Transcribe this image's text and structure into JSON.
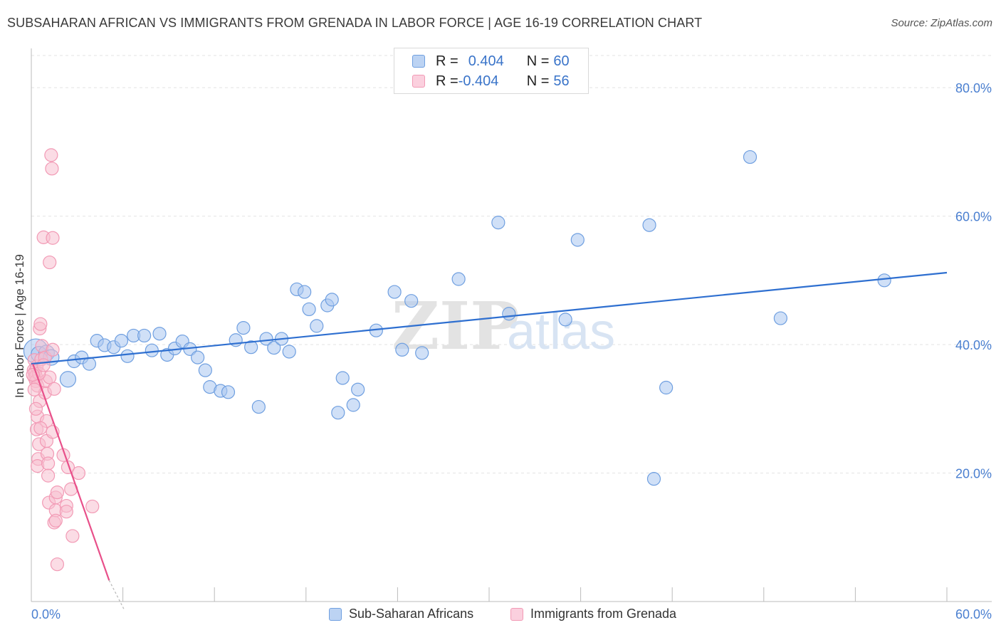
{
  "title": "SUBSAHARAN AFRICAN VS IMMIGRANTS FROM GRENADA IN LABOR FORCE | AGE 16-19 CORRELATION CHART",
  "source": "Source: ZipAtlas.com",
  "legend_stats": [
    {
      "r_label": "R = ",
      "r_value": "0.404",
      "n_label": "N = ",
      "n_value": "60",
      "color": "#6f9fe0"
    },
    {
      "r_label": "R = ",
      "r_value": "-0.404",
      "n_label": "N = ",
      "n_value": "56",
      "color": "#f29ab5"
    }
  ],
  "chart_data": {
    "type": "scatter",
    "ylabel": "In Labor Force | Age 16-19",
    "xlim": [
      0,
      60
    ],
    "ylim": [
      0,
      85
    ],
    "x_tick_labels": [
      "0.0%",
      "60.0%"
    ],
    "y_ticks": [
      20,
      40,
      60,
      80
    ],
    "y_tick_labels": [
      "20.0%",
      "40.0%",
      "60.0%",
      "80.0%"
    ],
    "grid": true,
    "legend_position": "bottom",
    "series": [
      {
        "name": "Sub-Saharan Africans",
        "color": "#6f9fe0",
        "fill": "#a9c6f0",
        "trend": {
          "x": [
            0,
            60
          ],
          "y": [
            37.0,
            51.2
          ],
          "color": "#2e6fd0"
        },
        "points": [
          [
            0.3,
            39.0
          ],
          [
            0.5,
            38.5
          ],
          [
            1.0,
            38.7
          ],
          [
            1.3,
            38.0
          ],
          [
            2.4,
            34.6
          ],
          [
            2.8,
            37.4
          ],
          [
            3.3,
            38.0
          ],
          [
            3.8,
            37.0
          ],
          [
            4.3,
            40.6
          ],
          [
            4.8,
            39.9
          ],
          [
            5.4,
            39.6
          ],
          [
            5.9,
            40.6
          ],
          [
            6.3,
            38.2
          ],
          [
            6.7,
            41.4
          ],
          [
            7.4,
            41.4
          ],
          [
            7.9,
            39.1
          ],
          [
            8.4,
            41.7
          ],
          [
            8.9,
            38.4
          ],
          [
            9.4,
            39.4
          ],
          [
            9.9,
            40.5
          ],
          [
            10.4,
            39.3
          ],
          [
            10.9,
            38.0
          ],
          [
            11.4,
            36.0
          ],
          [
            11.7,
            33.4
          ],
          [
            12.4,
            32.8
          ],
          [
            12.9,
            32.6
          ],
          [
            13.4,
            40.7
          ],
          [
            13.9,
            42.6
          ],
          [
            14.4,
            39.6
          ],
          [
            14.9,
            30.3
          ],
          [
            15.4,
            40.9
          ],
          [
            15.9,
            39.5
          ],
          [
            16.4,
            40.9
          ],
          [
            16.9,
            38.9
          ],
          [
            17.4,
            48.6
          ],
          [
            17.9,
            48.2
          ],
          [
            18.2,
            45.5
          ],
          [
            18.7,
            42.9
          ],
          [
            19.4,
            46.1
          ],
          [
            19.7,
            47.0
          ],
          [
            20.1,
            29.4
          ],
          [
            20.4,
            34.8
          ],
          [
            21.1,
            30.6
          ],
          [
            21.4,
            33.0
          ],
          [
            22.6,
            42.2
          ],
          [
            23.8,
            48.2
          ],
          [
            24.3,
            39.2
          ],
          [
            24.9,
            46.8
          ],
          [
            25.6,
            38.7
          ],
          [
            28.0,
            50.2
          ],
          [
            30.6,
            59.0
          ],
          [
            31.3,
            44.8
          ],
          [
            35.0,
            43.9
          ],
          [
            35.8,
            56.3
          ],
          [
            40.5,
            58.6
          ],
          [
            40.8,
            19.1
          ],
          [
            41.6,
            33.3
          ],
          [
            47.1,
            69.2
          ],
          [
            49.1,
            44.1
          ],
          [
            55.9,
            50.0
          ]
        ]
      },
      {
        "name": "Immigrants from Grenada",
        "color": "#f29ab5",
        "fill": "#f7bfd0",
        "trend": {
          "x": [
            0.1,
            5.1
          ],
          "y": [
            37.0,
            3.3
          ],
          "color": "#e8508a"
        },
        "trend_dashed": {
          "x": [
            5.1,
            6.1
          ],
          "y": [
            3.3,
            -3.2
          ]
        },
        "points": [
          [
            0.15,
            36.0
          ],
          [
            0.2,
            34.9
          ],
          [
            0.2,
            37.6
          ],
          [
            0.25,
            35.8
          ],
          [
            0.3,
            35.1
          ],
          [
            0.3,
            34.3
          ],
          [
            0.35,
            36.6
          ],
          [
            0.4,
            33.6
          ],
          [
            0.35,
            26.8
          ],
          [
            0.4,
            28.8
          ],
          [
            0.45,
            22.2
          ],
          [
            0.4,
            21.1
          ],
          [
            0.5,
            24.5
          ],
          [
            0.55,
            31.2
          ],
          [
            0.55,
            42.5
          ],
          [
            0.6,
            43.2
          ],
          [
            0.65,
            37.7
          ],
          [
            0.7,
            39.8
          ],
          [
            0.8,
            56.7
          ],
          [
            0.9,
            38.0
          ],
          [
            0.9,
            32.5
          ],
          [
            0.95,
            34.3
          ],
          [
            1.0,
            28.1
          ],
          [
            1.0,
            25.0
          ],
          [
            1.05,
            23.0
          ],
          [
            1.1,
            21.5
          ],
          [
            1.1,
            19.6
          ],
          [
            1.15,
            15.4
          ],
          [
            1.2,
            52.8
          ],
          [
            1.2,
            34.9
          ],
          [
            1.3,
            69.5
          ],
          [
            1.35,
            67.4
          ],
          [
            1.4,
            56.6
          ],
          [
            1.4,
            26.4
          ],
          [
            1.4,
            39.2
          ],
          [
            1.5,
            33.1
          ],
          [
            1.5,
            12.3
          ],
          [
            1.6,
            14.2
          ],
          [
            1.6,
            12.6
          ],
          [
            1.6,
            16.2
          ],
          [
            1.7,
            5.8
          ],
          [
            1.7,
            17.0
          ],
          [
            0.6,
            27.0
          ],
          [
            2.1,
            22.8
          ],
          [
            2.3,
            14.9
          ],
          [
            2.3,
            14.0
          ],
          [
            2.4,
            20.9
          ],
          [
            2.6,
            17.5
          ],
          [
            2.7,
            10.2
          ],
          [
            3.1,
            20.0
          ],
          [
            4.0,
            14.8
          ],
          [
            0.3,
            30.0
          ],
          [
            0.2,
            33.0
          ],
          [
            0.5,
            35.5
          ],
          [
            0.8,
            36.8
          ],
          [
            0.1,
            35.3
          ]
        ]
      }
    ]
  }
}
